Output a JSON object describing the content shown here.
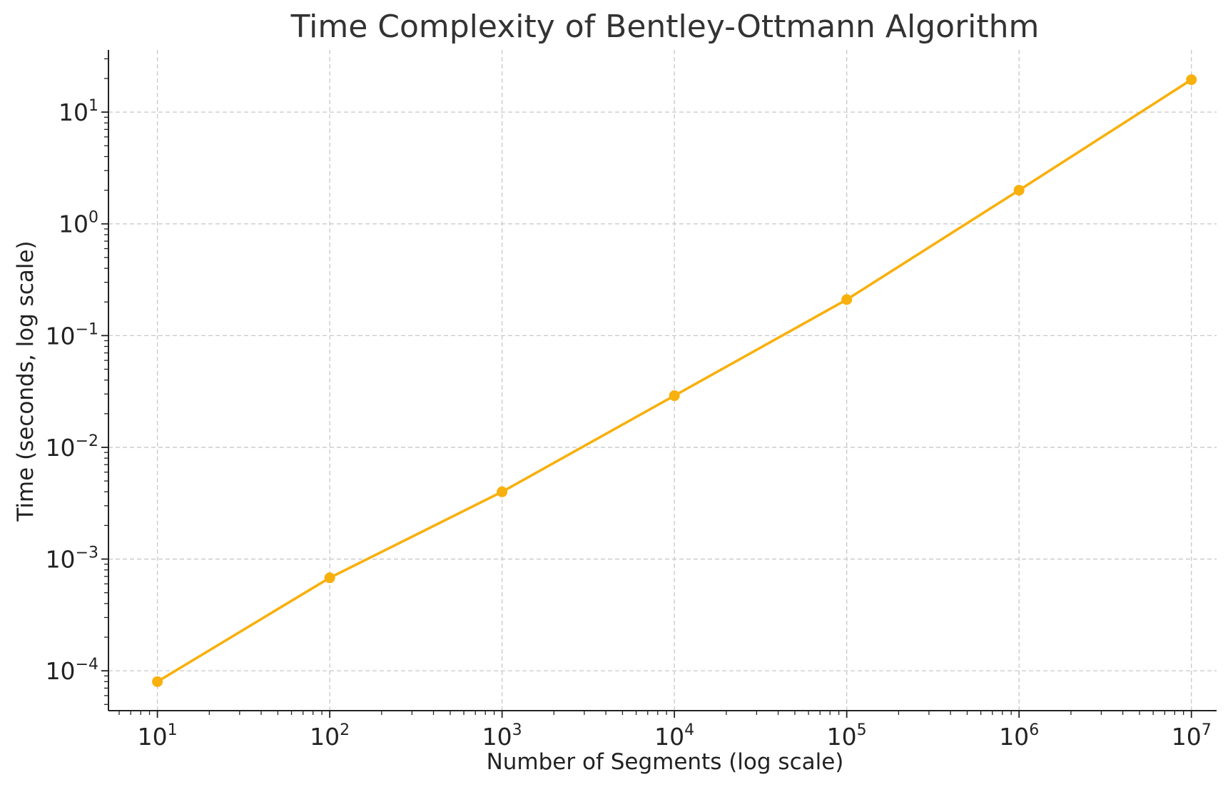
{
  "chart_data": {
    "type": "line",
    "title": "Time Complexity of Bentley-Ottmann Algorithm",
    "xlabel": "Number of Segments (log scale)",
    "ylabel": "Time (seconds, log scale)",
    "xscale": "log",
    "yscale": "log",
    "grid": true,
    "legend": "none",
    "xlim": [
      5.2,
      14000000
    ],
    "ylim": [
      4.4e-05,
      36
    ],
    "x_ticks": [
      {
        "value": 10,
        "base": "10",
        "exp": "1"
      },
      {
        "value": 100,
        "base": "10",
        "exp": "2"
      },
      {
        "value": 1000,
        "base": "10",
        "exp": "3"
      },
      {
        "value": 10000,
        "base": "10",
        "exp": "4"
      },
      {
        "value": 100000,
        "base": "10",
        "exp": "5"
      },
      {
        "value": 1000000,
        "base": "10",
        "exp": "6"
      },
      {
        "value": 10000000,
        "base": "10",
        "exp": "7"
      }
    ],
    "y_ticks": [
      {
        "value": 0.0001,
        "base": "10",
        "exp": "−4"
      },
      {
        "value": 0.001,
        "base": "10",
        "exp": "−3"
      },
      {
        "value": 0.01,
        "base": "10",
        "exp": "−2"
      },
      {
        "value": 0.1,
        "base": "10",
        "exp": "−1"
      },
      {
        "value": 1,
        "base": "10",
        "exp": "0"
      },
      {
        "value": 10,
        "base": "10",
        "exp": "1"
      }
    ],
    "series": [
      {
        "color": "#F8B00D",
        "marker": "circle",
        "x": [
          10,
          100,
          1000,
          10000,
          100000,
          1000000,
          10000000
        ],
        "y": [
          8e-05,
          0.00068,
          0.004,
          0.029,
          0.21,
          2.0,
          19.5
        ]
      }
    ]
  }
}
